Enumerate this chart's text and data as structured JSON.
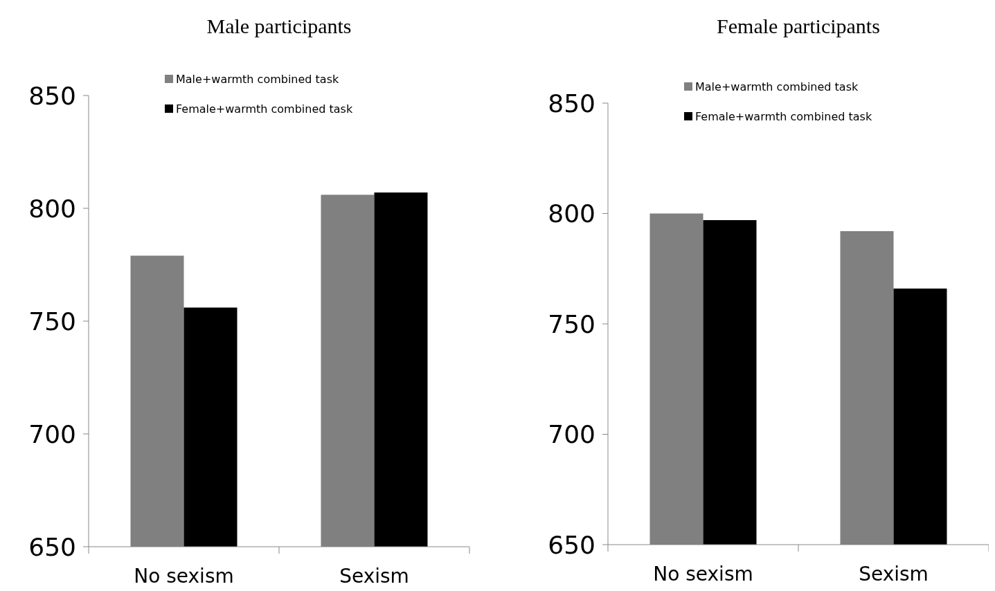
{
  "chart_data": [
    {
      "type": "bar",
      "title": "Male participants",
      "categories": [
        "No sexism",
        "Sexism"
      ],
      "series": [
        {
          "name": "Male+warmth combined task",
          "color": "#808080",
          "values": [
            779,
            806
          ]
        },
        {
          "name": "Female+warmth combined task",
          "color": "#000000",
          "values": [
            756,
            807
          ]
        }
      ],
      "ylim": [
        650,
        850
      ],
      "yticks": [
        650,
        700,
        750,
        800,
        850
      ],
      "grid": false,
      "legend": "top left"
    },
    {
      "type": "bar",
      "title": "Female participants",
      "categories": [
        "No sexism",
        "Sexism"
      ],
      "series": [
        {
          "name": "Male+warmth combined task",
          "color": "#808080",
          "values": [
            800,
            792
          ]
        },
        {
          "name": "Female+warmth combined task",
          "color": "#000000",
          "values": [
            797,
            766
          ]
        }
      ],
      "ylim": [
        650,
        850
      ],
      "yticks": [
        650,
        700,
        750,
        800,
        850
      ],
      "grid": false,
      "legend": "top left"
    }
  ]
}
